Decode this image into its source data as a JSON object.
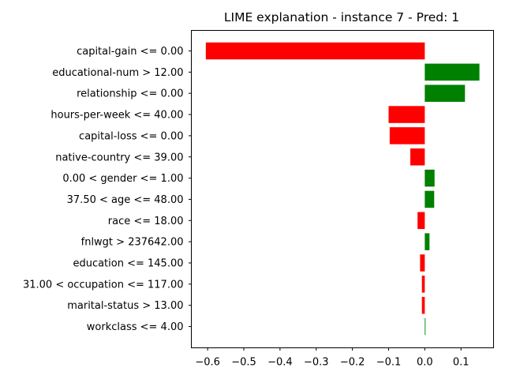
{
  "chart_data": {
    "type": "bar",
    "orientation": "horizontal",
    "title": "LIME explanation - instance 7 - Pred: 1",
    "xlabel": "",
    "ylabel": "",
    "xlim": [
      -0.645,
      0.19
    ],
    "xticks": [
      -0.6,
      -0.5,
      -0.4,
      -0.3,
      -0.2,
      -0.1,
      0.0,
      0.1
    ],
    "xtick_labels": [
      "−0.6",
      "−0.5",
      "−0.4",
      "−0.3",
      "−0.2",
      "−0.1",
      "0.0",
      "0.1"
    ],
    "grid": false,
    "legend": "none",
    "positive_color": "#008000",
    "negative_color": "#ff0000",
    "categories": [
      "capital-gain <= 0.00",
      "educational-num > 12.00",
      "relationship <= 0.00",
      "hours-per-week <= 40.00",
      "capital-loss <= 0.00",
      "native-country <= 39.00",
      "0.00 < gender <= 1.00",
      "37.50 < age <= 48.00",
      "race <= 18.00",
      "fnlwgt > 237642.00",
      "education <= 145.00",
      "31.00 < occupation <= 117.00",
      "marital-status > 13.00",
      "workclass <= 4.00"
    ],
    "values": [
      -0.605,
      0.151,
      0.111,
      -0.1,
      -0.097,
      -0.04,
      0.027,
      0.026,
      -0.02,
      0.013,
      -0.013,
      -0.008,
      -0.008,
      0.002
    ]
  }
}
